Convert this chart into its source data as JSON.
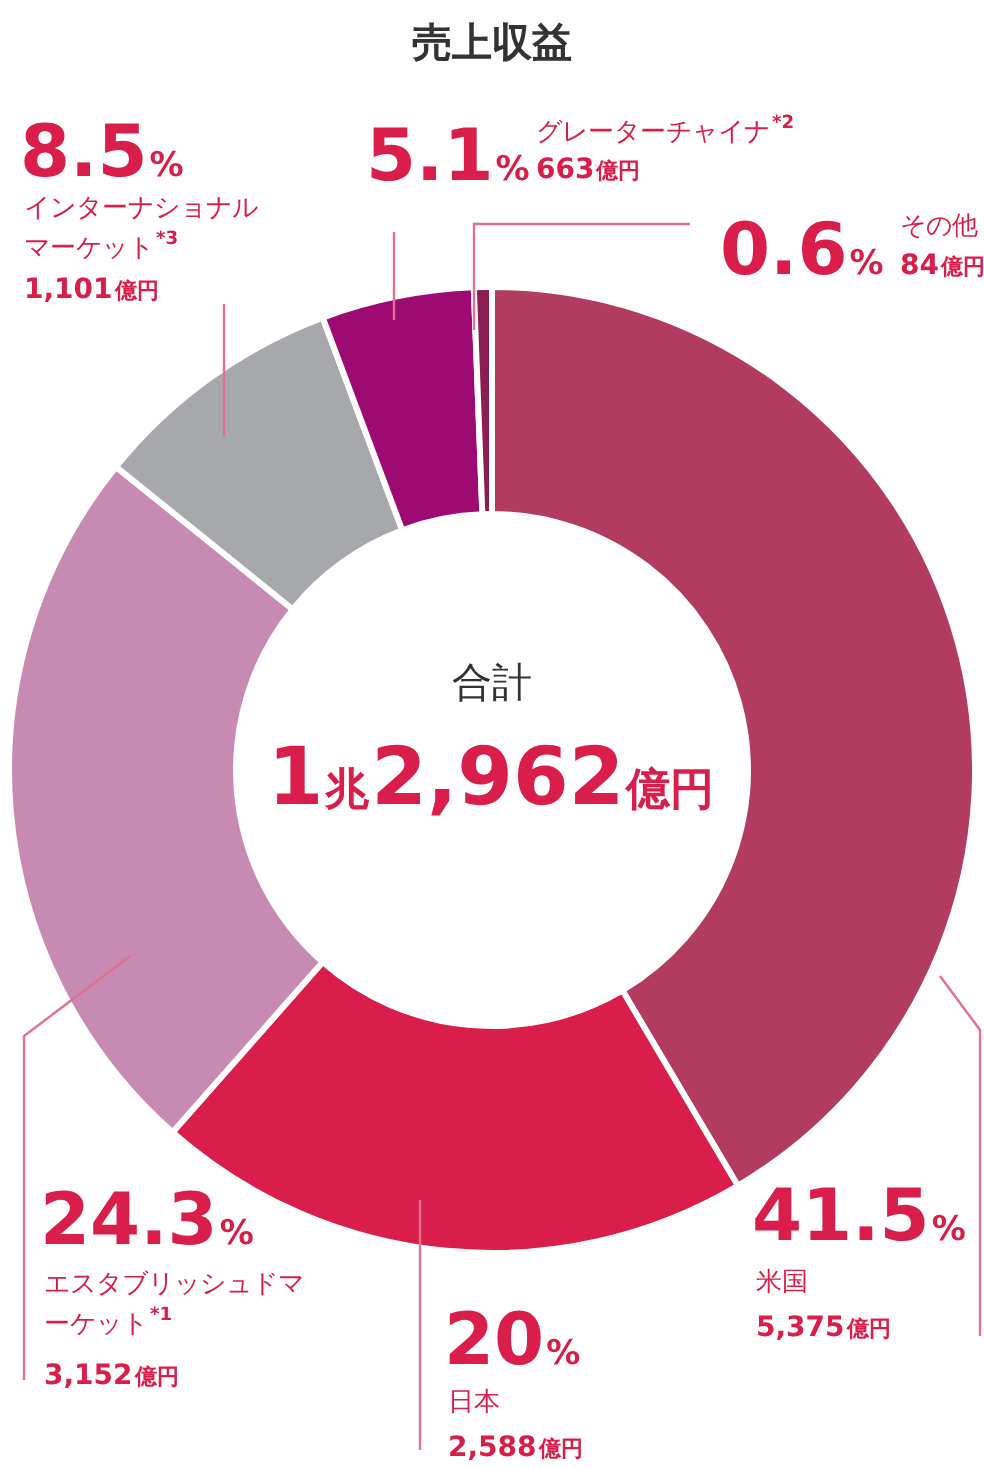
{
  "chart_data": {
    "type": "donut",
    "title": "売上収益",
    "categories": [
      "米国",
      "日本",
      "エスタブリッシュドマーケット$^{*1}$",
      "インターナショナルマーケット$^{*3}$",
      "グレーターチャイナ$^{*2}$",
      "その他"
    ],
    "values": [
      41.5,
      20,
      24.3,
      8.5,
      5.1,
      0.6
    ],
    "value_labels": [
      "41.5%",
      "20%",
      "24.3%",
      "8.5%",
      "5.1%",
      "0.6%"
    ],
    "colors": [
      "#b23c60",
      "#d91e4b",
      "#c78bb3",
      "#a7a8ab",
      "#9c0a72",
      "#8a1e52"
    ],
    "annotations": [
      {
        "text": "5,375億円",
        "x": "米国"
      },
      {
        "text": "2,588億円",
        "x": "日本"
      },
      {
        "text": "3,152億円",
        "x": "エスタブリッシュドマーケット$^{*1}$"
      },
      {
        "text": "1,101億円",
        "x": "インターナショナルマーケット$^{*3}$"
      },
      {
        "text": "663億円",
        "x": "グレーターチャイナ$^{*2}$"
      },
      {
        "text": "84億円",
        "x": "その他"
      },
      "合計",
      "1兆2,962億円"
    ],
    "legend": false
  }
}
